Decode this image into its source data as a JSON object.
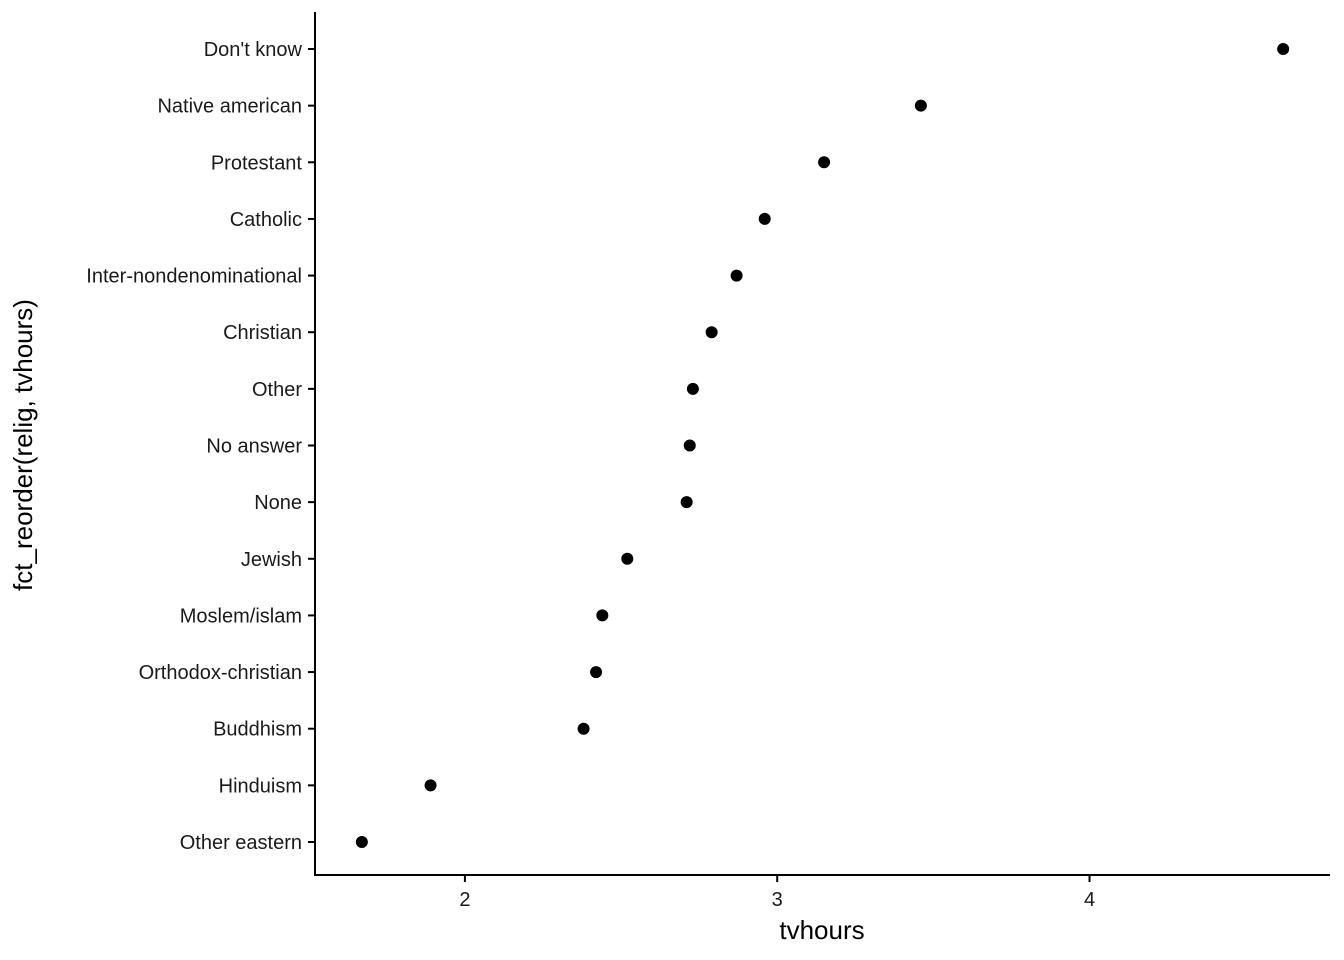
{
  "chart_data": {
    "type": "scatter",
    "title": "",
    "xlabel": "tvhours",
    "ylabel": "fct_reorder(relig, tvhours)",
    "xlim": [
      1.52,
      4.77
    ],
    "xticks": [
      2,
      3,
      4
    ],
    "grid": false,
    "point_color": "#000000",
    "categories": [
      "Other eastern",
      "Hinduism",
      "Buddhism",
      "Orthodox-christian",
      "Moslem/islam",
      "Jewish",
      "None",
      "No answer",
      "Other",
      "Christian",
      "Inter-nondenominational",
      "Catholic",
      "Protestant",
      "Native american",
      "Don't know"
    ],
    "values": [
      1.67,
      1.89,
      2.38,
      2.42,
      2.44,
      2.52,
      2.71,
      2.72,
      2.73,
      2.79,
      2.87,
      2.96,
      3.15,
      3.46,
      4.62
    ]
  }
}
